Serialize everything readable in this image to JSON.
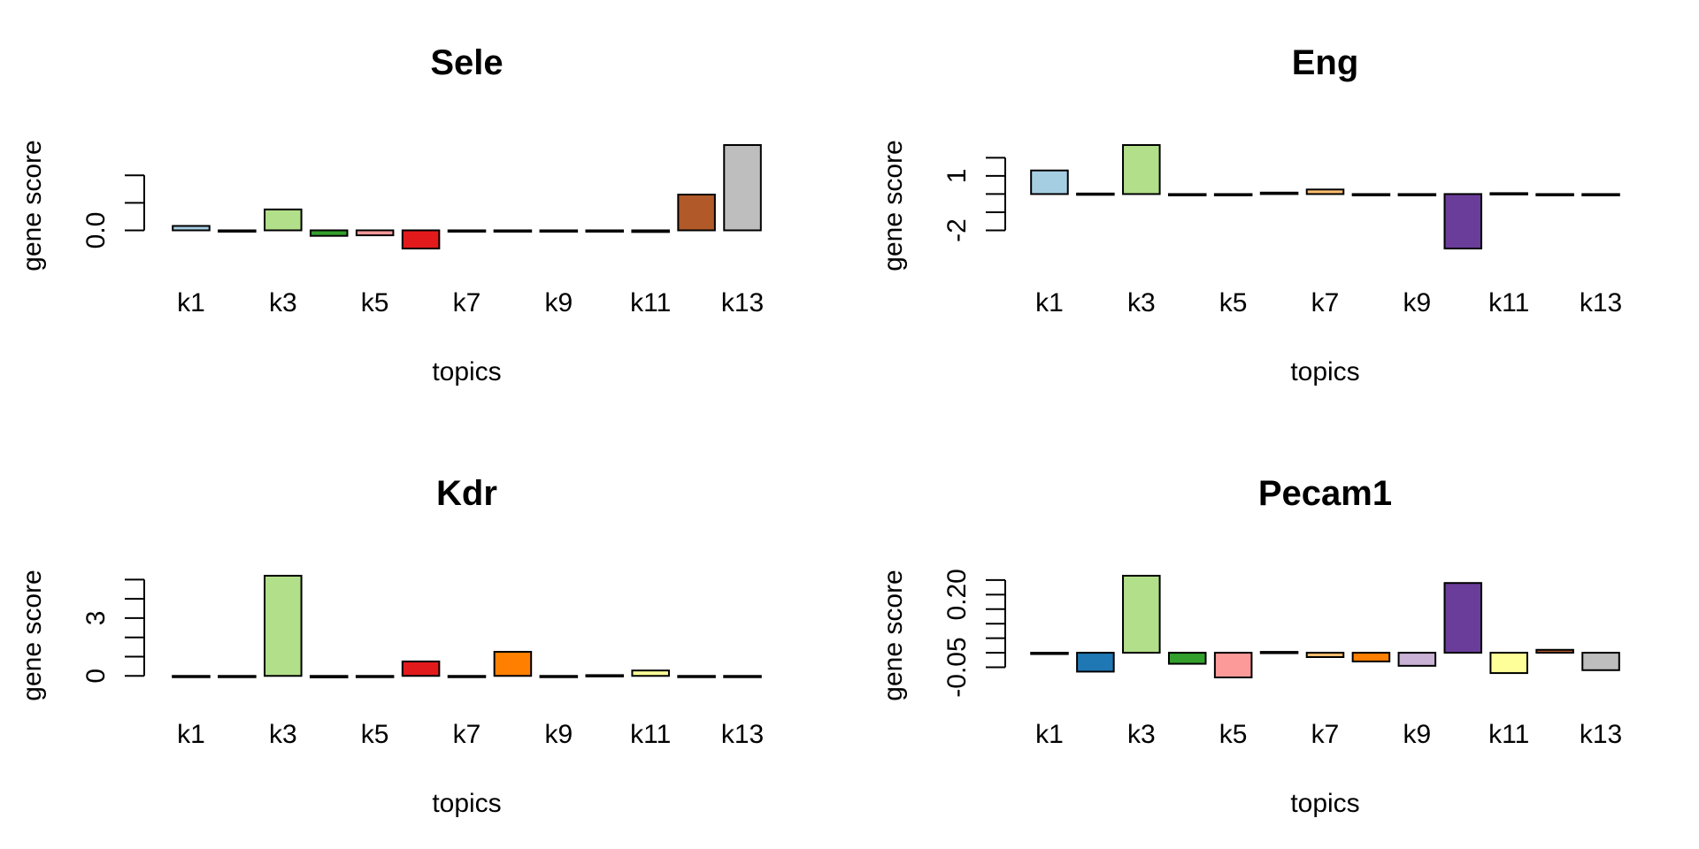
{
  "chart_data": [
    {
      "type": "bar",
      "title": "Sele",
      "xlabel": "topics",
      "ylabel": "gene score",
      "categories": [
        "k1",
        "k2",
        "k3",
        "k4",
        "k5",
        "k6",
        "k7",
        "k8",
        "k9",
        "k10",
        "k11",
        "k12",
        "k13"
      ],
      "x_tick_labels": [
        "k1",
        "k3",
        "k5",
        "k7",
        "k9",
        "k11",
        "k13"
      ],
      "values": [
        0.08,
        -0.02,
        0.38,
        -0.1,
        -0.09,
        -0.33,
        0.0,
        -0.02,
        -0.02,
        0.0,
        -0.03,
        0.65,
        1.55
      ],
      "ylim": [
        -0.33,
        1.55
      ],
      "y_ticks": [
        0.0,
        0.5,
        1.0
      ],
      "y_tick_labels": [
        "0.0",
        "",
        ""
      ],
      "colors": [
        "#A6CEE3",
        "#1F78B4",
        "#B2DF8A",
        "#33A02C",
        "#FB9A99",
        "#E31A1C",
        "#FDBF6F",
        "#FF7F00",
        "#CAB2D6",
        "#6A3D9A",
        "#FFFF99",
        "#B15928",
        "#BEBEBE"
      ]
    },
    {
      "type": "bar",
      "title": "Eng",
      "xlabel": "topics",
      "ylabel": "gene score",
      "categories": [
        "k1",
        "k2",
        "k3",
        "k4",
        "k5",
        "k6",
        "k7",
        "k8",
        "k9",
        "k10",
        "k11",
        "k12",
        "k13"
      ],
      "x_tick_labels": [
        "k1",
        "k3",
        "k5",
        "k7",
        "k9",
        "k11",
        "k13"
      ],
      "values": [
        1.3,
        0.03,
        2.7,
        0.0,
        -0.05,
        0.08,
        0.25,
        0.0,
        0.0,
        -3.0,
        0.05,
        -0.03,
        -0.05
      ],
      "ylim": [
        -3.0,
        2.7
      ],
      "y_ticks": [
        -2,
        -1,
        0,
        1,
        2
      ],
      "y_tick_labels": [
        "-2",
        "",
        "",
        "1",
        ""
      ],
      "colors": [
        "#A6CEE3",
        "#1F78B4",
        "#B2DF8A",
        "#33A02C",
        "#FB9A99",
        "#E31A1C",
        "#FDBF6F",
        "#FF7F00",
        "#CAB2D6",
        "#6A3D9A",
        "#FFFF99",
        "#B15928",
        "#BEBEBE"
      ]
    },
    {
      "type": "bar",
      "title": "Kdr",
      "xlabel": "topics",
      "ylabel": "gene score",
      "categories": [
        "k1",
        "k2",
        "k3",
        "k4",
        "k5",
        "k6",
        "k7",
        "k8",
        "k9",
        "k10",
        "k11",
        "k12",
        "k13"
      ],
      "x_tick_labels": [
        "k1",
        "k3",
        "k5",
        "k7",
        "k9",
        "k11",
        "k13"
      ],
      "values": [
        -0.05,
        0.0,
        5.2,
        -0.08,
        -0.03,
        0.75,
        -0.03,
        1.25,
        0.0,
        0.04,
        0.28,
        -0.02,
        0.0
      ],
      "ylim": [
        -0.08,
        5.2
      ],
      "y_ticks": [
        0,
        1,
        2,
        3,
        4,
        5
      ],
      "y_tick_labels": [
        "0",
        "",
        "",
        "3",
        "",
        ""
      ],
      "colors": [
        "#A6CEE3",
        "#1F78B4",
        "#B2DF8A",
        "#33A02C",
        "#FB9A99",
        "#E31A1C",
        "#FDBF6F",
        "#FF7F00",
        "#CAB2D6",
        "#6A3D9A",
        "#FFFF99",
        "#B15928",
        "#BEBEBE"
      ]
    },
    {
      "type": "bar",
      "title": "Pecam1",
      "xlabel": "topics",
      "ylabel": "gene score",
      "categories": [
        "k1",
        "k2",
        "k3",
        "k4",
        "k5",
        "k6",
        "k7",
        "k8",
        "k9",
        "k10",
        "k11",
        "k12",
        "k13"
      ],
      "x_tick_labels": [
        "k1",
        "k3",
        "k5",
        "k7",
        "k9",
        "k11",
        "k13"
      ],
      "values": [
        0.0,
        -0.065,
        0.265,
        -0.038,
        -0.085,
        0.003,
        -0.015,
        -0.03,
        -0.045,
        0.24,
        -0.07,
        0.01,
        -0.06
      ],
      "ylim": [
        -0.085,
        0.265
      ],
      "y_ticks": [
        -0.05,
        0.0,
        0.05,
        0.1,
        0.15,
        0.2,
        0.25
      ],
      "y_tick_labels": [
        "-0.05",
        "",
        "",
        "",
        "",
        "0.20",
        ""
      ],
      "colors": [
        "#A6CEE3",
        "#1F78B4",
        "#B2DF8A",
        "#33A02C",
        "#FB9A99",
        "#E31A1C",
        "#FDBF6F",
        "#FF7F00",
        "#CAB2D6",
        "#6A3D9A",
        "#FFFF99",
        "#B15928",
        "#BEBEBE"
      ]
    }
  ]
}
